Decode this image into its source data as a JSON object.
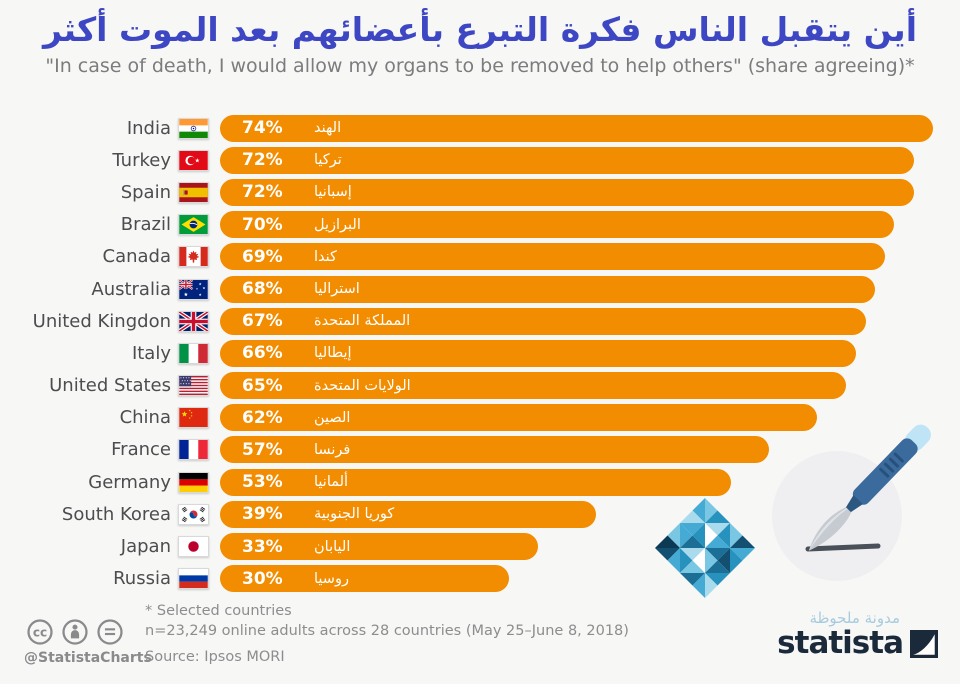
{
  "header": {
    "title_ar": "أين يتقبل الناس فكرة التبرع بأعضائهم بعد الموت أكثر",
    "subtitle": "\"In case of death, I would allow my organs to be removed to help others\" (share agreeing)*"
  },
  "chart_data": {
    "type": "bar",
    "orientation": "horizontal",
    "unit": "%",
    "value_axis_max": 74,
    "bar_color": "#F28C00",
    "rows": [
      {
        "country": "India",
        "country_ar": "الهند",
        "value": 74,
        "flag": "india-flag"
      },
      {
        "country": "Turkey",
        "country_ar": "تركيا",
        "value": 72,
        "flag": "turkey-flag"
      },
      {
        "country": "Spain",
        "country_ar": "إسبانيا",
        "value": 72,
        "flag": "spain-flag"
      },
      {
        "country": "Brazil",
        "country_ar": "البرازيل",
        "value": 70,
        "flag": "brazil-flag"
      },
      {
        "country": "Canada",
        "country_ar": "كندا",
        "value": 69,
        "flag": "canada-flag"
      },
      {
        "country": "Australia",
        "country_ar": "استراليا",
        "value": 68,
        "flag": "australia-flag"
      },
      {
        "country": "United Kingdon",
        "country_ar": "المملكة المتحدة",
        "value": 67,
        "flag": "uk-flag"
      },
      {
        "country": "Italy",
        "country_ar": "إيطاليا",
        "value": 66,
        "flag": "italy-flag"
      },
      {
        "country": "United States",
        "country_ar": "الولايات المتحدة",
        "value": 65,
        "flag": "us-flag"
      },
      {
        "country": "China",
        "country_ar": "الصين",
        "value": 62,
        "flag": "china-flag"
      },
      {
        "country": "France",
        "country_ar": "فرنسا",
        "value": 57,
        "flag": "france-flag"
      },
      {
        "country": "Germany",
        "country_ar": "ألمانيا",
        "value": 53,
        "flag": "germany-flag"
      },
      {
        "country": "South Korea",
        "country_ar": "كوريا الجنوبية",
        "value": 39,
        "flag": "south-korea-flag"
      },
      {
        "country": "Japan",
        "country_ar": "اليابان",
        "value": 33,
        "flag": "japan-flag"
      },
      {
        "country": "Russia",
        "country_ar": "روسيا",
        "value": 30,
        "flag": "russia-flag"
      }
    ]
  },
  "footer": {
    "note_selected": "* Selected countries",
    "note_sample": "n=23,249 online adults across 28 countries (May 25–June 8, 2018)",
    "source": "Source: Ipsos MORI",
    "credit": "@StatistaCharts",
    "brand_ar": "مدونة ملحوظة",
    "brand": "statista"
  },
  "colors": {
    "title": "#3D47C3",
    "subtitle": "#7C7C7E",
    "label": "#4D4D50",
    "bar": "#F28C00",
    "footnote": "#8D8D8F",
    "brand_navy": "#1B2A3B",
    "brand_light_blue": "#A7CBDE",
    "background": "#F7F7F5"
  }
}
